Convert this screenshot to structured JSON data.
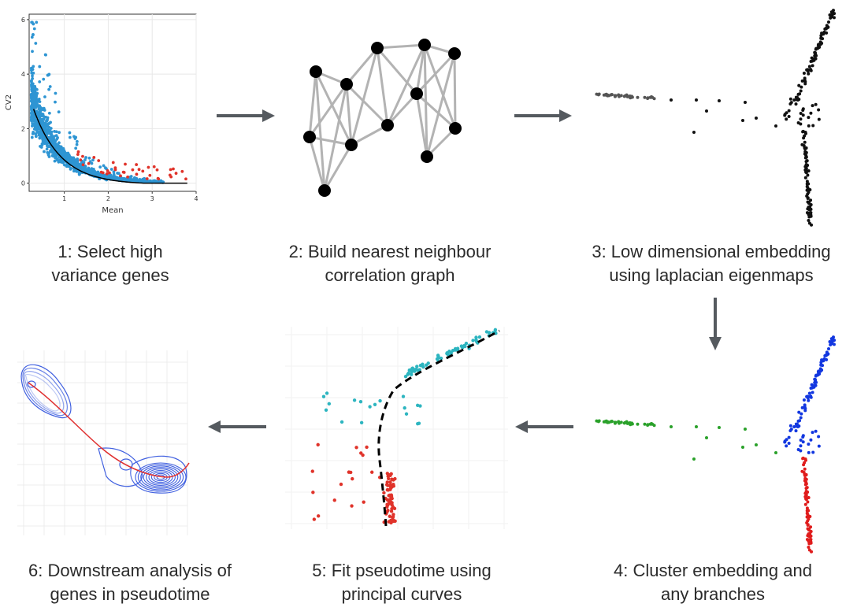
{
  "steps": [
    {
      "line1": "1: Select high",
      "line2": "variance genes"
    },
    {
      "line1": "2: Build nearest neighbour",
      "line2": "correlation graph"
    },
    {
      "line1": "3: Low dimensional embedding",
      "line2": "using laplacian eigenmaps"
    },
    {
      "line1": "4: Cluster embedding and",
      "line2": "any branches"
    },
    {
      "line1": "5: Fit pseudotime using",
      "line2": "principal curves"
    },
    {
      "line1": "6: Downstream analysis of",
      "line2": "genes in pseudotime"
    }
  ],
  "variance_plot": {
    "xlabel": "Mean",
    "ylabel": "CV2",
    "xticks": [
      "1",
      "2",
      "3",
      "4"
    ],
    "yticks": [
      "0",
      "2",
      "4",
      "6"
    ],
    "xlim": [
      0.2,
      4
    ],
    "ylim": [
      -0.3,
      6.2
    ]
  },
  "colors": {
    "blue_points": "#2e95d3",
    "red_points": "#e0332a",
    "black_points": "#111111",
    "grey_points": "#555555",
    "green_points": "#2aa12a",
    "cluster_blue": "#1237e0",
    "cluster_red": "#e01c1c",
    "cyan_points": "#2db5c0",
    "graph_edges": "#b3b3b3",
    "arrows": "#555a5f",
    "contour": "#4060e0",
    "pseudotime_line": "#e03030"
  },
  "icons": {
    "arrow": "right-arrow / left-arrow / down-arrow"
  }
}
